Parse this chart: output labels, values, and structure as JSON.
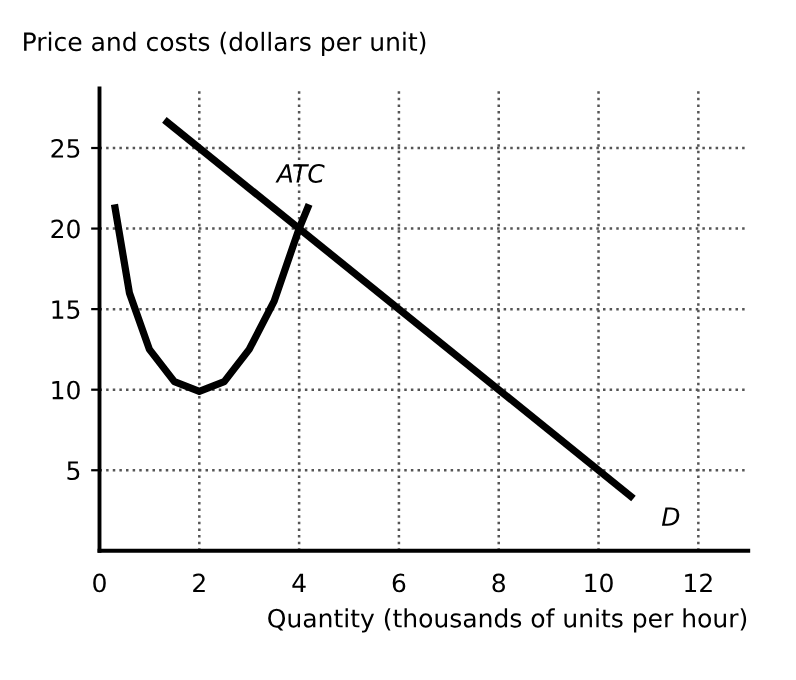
{
  "chart_data": {
    "type": "line",
    "ylabel": "Price and costs (dollars per unit)",
    "xlabel": "Quantity (thousands of units per hour)",
    "xlim": [
      0,
      13
    ],
    "ylim": [
      0,
      28.7
    ],
    "xticks": [
      0,
      2,
      4,
      6,
      8,
      10,
      12
    ],
    "yticks": [
      5,
      10,
      15,
      20,
      25
    ],
    "grid": true,
    "line_style": "solid",
    "marker": "none",
    "series": [
      {
        "name": "ATC",
        "color": "#000000",
        "x": [
          0.3,
          0.6,
          1.0,
          1.5,
          2.0,
          2.5,
          3.0,
          3.5,
          4.0,
          4.2
        ],
        "values": [
          21.5,
          16,
          12.5,
          10.5,
          9.9,
          10.5,
          12.5,
          15.5,
          20,
          21.5
        ]
      },
      {
        "name": "D",
        "color": "#000000",
        "x": [
          1.3,
          10.7
        ],
        "values": [
          26.75,
          3.25
        ]
      }
    ]
  }
}
